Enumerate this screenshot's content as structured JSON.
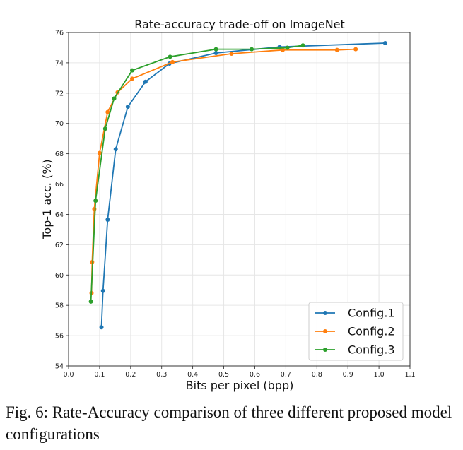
{
  "chart_data": {
    "type": "line",
    "title": "Rate-accuracy trade-off on ImageNet",
    "xlabel": "Bits per pixel (bpp)",
    "ylabel": "Top-1 acc. (%)",
    "xlim": [
      0.0,
      1.1
    ],
    "ylim": [
      54,
      76
    ],
    "xticks": [
      "0.0",
      "0.1",
      "0.2",
      "0.3",
      "0.4",
      "0.5",
      "0.6",
      "0.7",
      "0.8",
      "0.9",
      "1.0",
      "1.1"
    ],
    "yticks": [
      "54",
      "56",
      "58",
      "60",
      "62",
      "64",
      "66",
      "68",
      "70",
      "72",
      "74",
      "76"
    ],
    "grid": true,
    "legend_position": "bottom-right",
    "series": [
      {
        "name": "Config.1",
        "color": "#1f77b4",
        "x": [
          0.106,
          0.111,
          0.126,
          0.152,
          0.191,
          0.248,
          0.325,
          0.475,
          0.68,
          1.02
        ],
        "y": [
          56.55,
          58.95,
          63.65,
          68.3,
          71.1,
          72.75,
          73.95,
          74.65,
          75.05,
          75.3
        ]
      },
      {
        "name": "Config.2",
        "color": "#ff7f0e",
        "x": [
          0.074,
          0.076,
          0.083,
          0.1,
          0.126,
          0.158,
          0.205,
          0.335,
          0.525,
          0.69,
          0.865,
          0.925
        ],
        "y": [
          58.8,
          60.85,
          64.35,
          68.05,
          70.75,
          72.05,
          72.95,
          74.05,
          74.6,
          74.85,
          74.85,
          74.9
        ]
      },
      {
        "name": "Config.3",
        "color": "#2ca02c",
        "x": [
          0.072,
          0.087,
          0.118,
          0.147,
          0.205,
          0.327,
          0.475,
          0.59,
          0.705,
          0.755
        ],
        "y": [
          58.25,
          64.9,
          69.65,
          71.65,
          73.5,
          74.4,
          74.9,
          74.9,
          75.0,
          75.15
        ]
      }
    ]
  },
  "caption": "Fig. 6: Rate-Accuracy comparison of three different proposed model configurations"
}
